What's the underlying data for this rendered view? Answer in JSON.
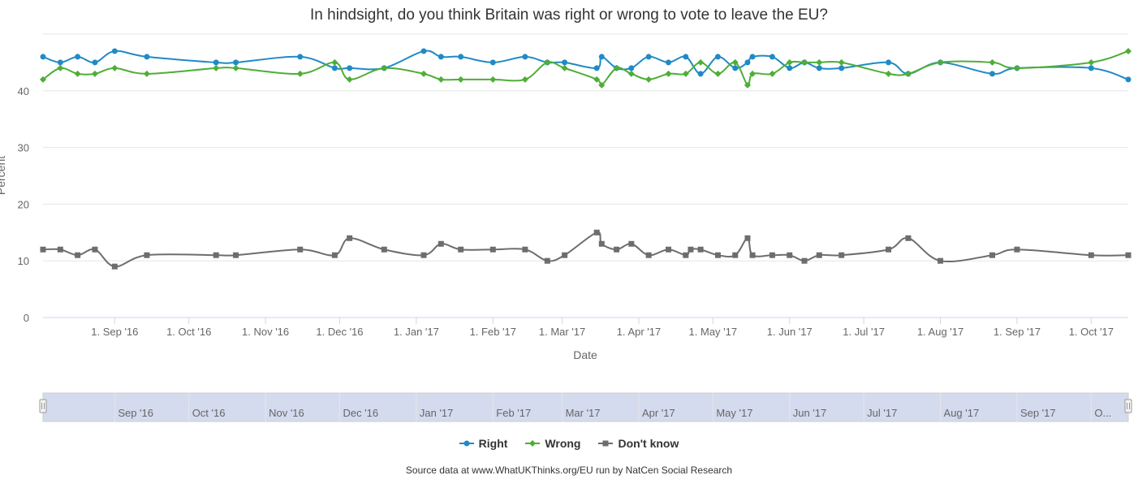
{
  "chart_data": {
    "type": "line",
    "title": "In hindsight, do you think Britain was right or wrong to vote to leave the EU?",
    "xlabel": "Date",
    "ylabel": "Percent",
    "ylim": [
      0,
      50
    ],
    "xlim": [
      "2016-08-03",
      "2017-10-16"
    ],
    "y_ticks": [
      0,
      10,
      20,
      30,
      40
    ],
    "x_ticks": [
      {
        "date": "2016-09-01",
        "label": "1. Sep '16"
      },
      {
        "date": "2016-10-01",
        "label": "1. Oct '16"
      },
      {
        "date": "2016-11-01",
        "label": "1. Nov '16"
      },
      {
        "date": "2016-12-01",
        "label": "1. Dec '16"
      },
      {
        "date": "2017-01-01",
        "label": "1. Jan '17"
      },
      {
        "date": "2017-02-01",
        "label": "1. Feb '17"
      },
      {
        "date": "2017-03-01",
        "label": "1. Mar '17"
      },
      {
        "date": "2017-04-01",
        "label": "1. Apr '17"
      },
      {
        "date": "2017-05-01",
        "label": "1. May '17"
      },
      {
        "date": "2017-06-01",
        "label": "1. Jun '17"
      },
      {
        "date": "2017-07-01",
        "label": "1. Jul '17"
      },
      {
        "date": "2017-08-01",
        "label": "1. Aug '17"
      },
      {
        "date": "2017-09-01",
        "label": "1. Sep '17"
      },
      {
        "date": "2017-10-01",
        "label": "1. Oct '17"
      }
    ],
    "grid": true,
    "legend_position": "bottom-center",
    "series": [
      {
        "name": "Right",
        "color": "#1f8ac6",
        "marker": "circle",
        "points": [
          [
            "2016-08-03",
            46
          ],
          [
            "2016-08-10",
            45
          ],
          [
            "2016-08-17",
            46
          ],
          [
            "2016-08-24",
            45
          ],
          [
            "2016-09-01",
            47
          ],
          [
            "2016-09-14",
            46
          ],
          [
            "2016-10-12",
            45
          ],
          [
            "2016-10-20",
            45
          ],
          [
            "2016-11-15",
            46
          ],
          [
            "2016-11-29",
            44
          ],
          [
            "2016-12-05",
            44
          ],
          [
            "2016-12-19",
            44
          ],
          [
            "2017-01-04",
            47
          ],
          [
            "2017-01-11",
            46
          ],
          [
            "2017-01-19",
            46
          ],
          [
            "2017-02-01",
            45
          ],
          [
            "2017-02-14",
            46
          ],
          [
            "2017-02-23",
            45
          ],
          [
            "2017-03-02",
            45
          ],
          [
            "2017-03-15",
            44
          ],
          [
            "2017-03-17",
            46
          ],
          [
            "2017-03-23",
            44
          ],
          [
            "2017-03-29",
            44
          ],
          [
            "2017-04-05",
            46
          ],
          [
            "2017-04-13",
            45
          ],
          [
            "2017-04-20",
            46
          ],
          [
            "2017-04-26",
            43
          ],
          [
            "2017-05-03",
            46
          ],
          [
            "2017-05-10",
            44
          ],
          [
            "2017-05-15",
            45
          ],
          [
            "2017-05-17",
            46
          ],
          [
            "2017-05-25",
            46
          ],
          [
            "2017-06-01",
            44
          ],
          [
            "2017-06-07",
            45
          ],
          [
            "2017-06-13",
            44
          ],
          [
            "2017-06-22",
            44
          ],
          [
            "2017-07-11",
            45
          ],
          [
            "2017-07-19",
            43
          ],
          [
            "2017-08-01",
            45
          ],
          [
            "2017-08-22",
            43
          ],
          [
            "2017-09-01",
            44
          ],
          [
            "2017-10-01",
            44
          ],
          [
            "2017-10-16",
            42
          ]
        ]
      },
      {
        "name": "Wrong",
        "color": "#4eae37",
        "marker": "diamond",
        "points": [
          [
            "2016-08-03",
            42
          ],
          [
            "2016-08-10",
            44
          ],
          [
            "2016-08-17",
            43
          ],
          [
            "2016-08-24",
            43
          ],
          [
            "2016-09-01",
            44
          ],
          [
            "2016-09-14",
            43
          ],
          [
            "2016-10-12",
            44
          ],
          [
            "2016-10-20",
            44
          ],
          [
            "2016-11-15",
            43
          ],
          [
            "2016-11-29",
            45
          ],
          [
            "2016-12-05",
            42
          ],
          [
            "2016-12-19",
            44
          ],
          [
            "2017-01-04",
            43
          ],
          [
            "2017-01-11",
            42
          ],
          [
            "2017-01-19",
            42
          ],
          [
            "2017-02-01",
            42
          ],
          [
            "2017-02-14",
            42
          ],
          [
            "2017-02-23",
            45
          ],
          [
            "2017-03-02",
            44
          ],
          [
            "2017-03-15",
            42
          ],
          [
            "2017-03-17",
            41
          ],
          [
            "2017-03-23",
            44
          ],
          [
            "2017-03-29",
            43
          ],
          [
            "2017-04-05",
            42
          ],
          [
            "2017-04-13",
            43
          ],
          [
            "2017-04-20",
            43
          ],
          [
            "2017-04-26",
            45
          ],
          [
            "2017-05-03",
            43
          ],
          [
            "2017-05-10",
            45
          ],
          [
            "2017-05-15",
            41
          ],
          [
            "2017-05-17",
            43
          ],
          [
            "2017-05-25",
            43
          ],
          [
            "2017-06-01",
            45
          ],
          [
            "2017-06-07",
            45
          ],
          [
            "2017-06-13",
            45
          ],
          [
            "2017-06-22",
            45
          ],
          [
            "2017-07-11",
            43
          ],
          [
            "2017-07-19",
            43
          ],
          [
            "2017-08-01",
            45
          ],
          [
            "2017-08-22",
            45
          ],
          [
            "2017-09-01",
            44
          ],
          [
            "2017-10-01",
            45
          ],
          [
            "2017-10-16",
            47
          ]
        ]
      },
      {
        "name": "Don't know",
        "color": "#6d6d6d",
        "marker": "square",
        "points": [
          [
            "2016-08-03",
            12
          ],
          [
            "2016-08-10",
            12
          ],
          [
            "2016-08-17",
            11
          ],
          [
            "2016-08-24",
            12
          ],
          [
            "2016-09-01",
            9
          ],
          [
            "2016-09-14",
            11
          ],
          [
            "2016-10-12",
            11
          ],
          [
            "2016-10-20",
            11
          ],
          [
            "2016-11-15",
            12
          ],
          [
            "2016-11-29",
            11
          ],
          [
            "2016-12-05",
            14
          ],
          [
            "2016-12-19",
            12
          ],
          [
            "2017-01-04",
            11
          ],
          [
            "2017-01-11",
            13
          ],
          [
            "2017-01-19",
            12
          ],
          [
            "2017-02-01",
            12
          ],
          [
            "2017-02-14",
            12
          ],
          [
            "2017-02-23",
            10
          ],
          [
            "2017-03-02",
            11
          ],
          [
            "2017-03-15",
            15
          ],
          [
            "2017-03-17",
            13
          ],
          [
            "2017-03-23",
            12
          ],
          [
            "2017-03-29",
            13
          ],
          [
            "2017-04-05",
            11
          ],
          [
            "2017-04-13",
            12
          ],
          [
            "2017-04-20",
            11
          ],
          [
            "2017-04-22",
            12
          ],
          [
            "2017-04-26",
            12
          ],
          [
            "2017-05-03",
            11
          ],
          [
            "2017-05-10",
            11
          ],
          [
            "2017-05-15",
            14
          ],
          [
            "2017-05-17",
            11
          ],
          [
            "2017-05-25",
            11
          ],
          [
            "2017-06-01",
            11
          ],
          [
            "2017-06-07",
            10
          ],
          [
            "2017-06-13",
            11
          ],
          [
            "2017-06-22",
            11
          ],
          [
            "2017-07-11",
            12
          ],
          [
            "2017-07-19",
            14
          ],
          [
            "2017-08-01",
            10
          ],
          [
            "2017-08-22",
            11
          ],
          [
            "2017-09-01",
            12
          ],
          [
            "2017-10-01",
            11
          ],
          [
            "2017-10-16",
            11
          ]
        ]
      }
    ],
    "navigator": {
      "labels": [
        "Sep '16",
        "Oct '16",
        "Nov '16",
        "Dec '16",
        "Jan '17",
        "Feb '17",
        "Mar '17",
        "Apr '17",
        "May '17",
        "Jun '17",
        "Jul '17",
        "Aug '17",
        "Sep '17",
        "O..."
      ],
      "label_dates": [
        "2016-09-01",
        "2016-10-01",
        "2016-11-01",
        "2016-12-01",
        "2017-01-01",
        "2017-02-01",
        "2017-03-01",
        "2017-04-01",
        "2017-05-01",
        "2017-06-01",
        "2017-07-01",
        "2017-08-01",
        "2017-09-01",
        "2017-10-01"
      ]
    }
  },
  "legend": {
    "right": "Right",
    "wrong": "Wrong",
    "dont_know": "Don't know"
  },
  "source_note": "Source data at www.WhatUKThinks.org/EU run by NatCen Social Research"
}
